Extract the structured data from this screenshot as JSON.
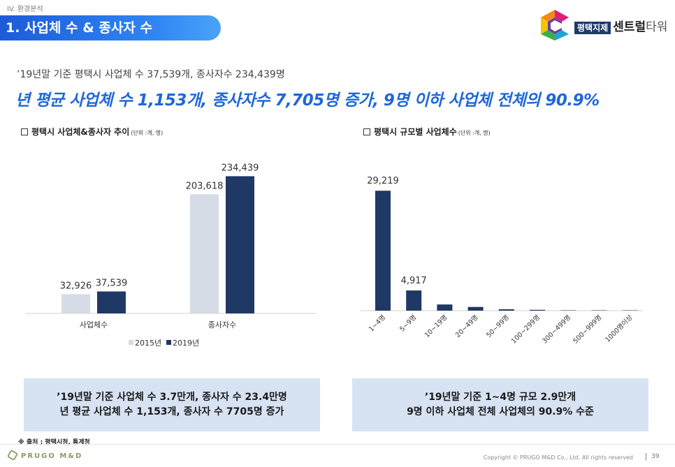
{
  "header": {
    "section": "IV. 환경분석",
    "title": "1. 사업체 수 & 종사자 수",
    "logo_box": "평택지제",
    "logo_main": "센트럴",
    "logo_tail": "타워"
  },
  "subhead": "’19년말 기준 평택시 사업체 수 37,539개, 종사자수 234,439명",
  "headline": "년 평균 사업체 수 1,153개, 종사자수 7,705명 증가, 9명 이하 사업체 전체의 90.9%",
  "colors": {
    "primary": "#1f3864",
    "secondary": "#d6dce5",
    "accent": "#1e67d9",
    "summary_bg": "#d7e3f3"
  },
  "chart_data": [
    {
      "type": "bar",
      "title": "평택시 사업체&종사자 추이",
      "unit": "(단위 :개, 명)",
      "categories": [
        "사업체수",
        "종사자수"
      ],
      "series": [
        {
          "name": "2015년",
          "values": [
            32926,
            203618
          ],
          "labels": [
            "32,926",
            "203,618"
          ],
          "color": "#d6dce5"
        },
        {
          "name": "2019년",
          "values": [
            37539,
            234439
          ],
          "labels": [
            "37,539",
            "234,439"
          ],
          "color": "#1f3864"
        }
      ],
      "ylim": [
        0,
        260000
      ],
      "legend": "bottom",
      "grid": false
    },
    {
      "type": "bar",
      "title": "평택시 규모별 사업체수",
      "unit": "(단위 :개, 명)",
      "categories": [
        "1~4명",
        "5~9명",
        "10~19명",
        "20~49명",
        "50~99명",
        "100~299명",
        "300~499명",
        "500~999명",
        "1000명이상"
      ],
      "values": [
        29219,
        4917,
        1500,
        900,
        330,
        200,
        25,
        12,
        10
      ],
      "labels": [
        "29,219",
        "4,917",
        "",
        "",
        "",
        "",
        "",
        "",
        ""
      ],
      "color": "#1f3864",
      "ylim": [
        0,
        33000
      ],
      "grid": false
    }
  ],
  "summaries": [
    {
      "line1": "’19년말 기준 사업체 수 3.7만개, 종사자 수 23.4만명",
      "line2": "년 평균 사업체 수 1,153개, 종사자 수 7705명 증가"
    },
    {
      "line1": "’19년말 기준 1~4명 규모 2.9만개",
      "line2": "9명 이하 사업체 전체 사업체의 90.9% 수준"
    }
  ],
  "source": "※ 출처 : 평택시청, 통계청",
  "footer": {
    "brand": "PRUGO M&D",
    "copyright": "Copyright © PRUGO M&D Co., Ltd.   All rights reserved",
    "page": "39"
  }
}
